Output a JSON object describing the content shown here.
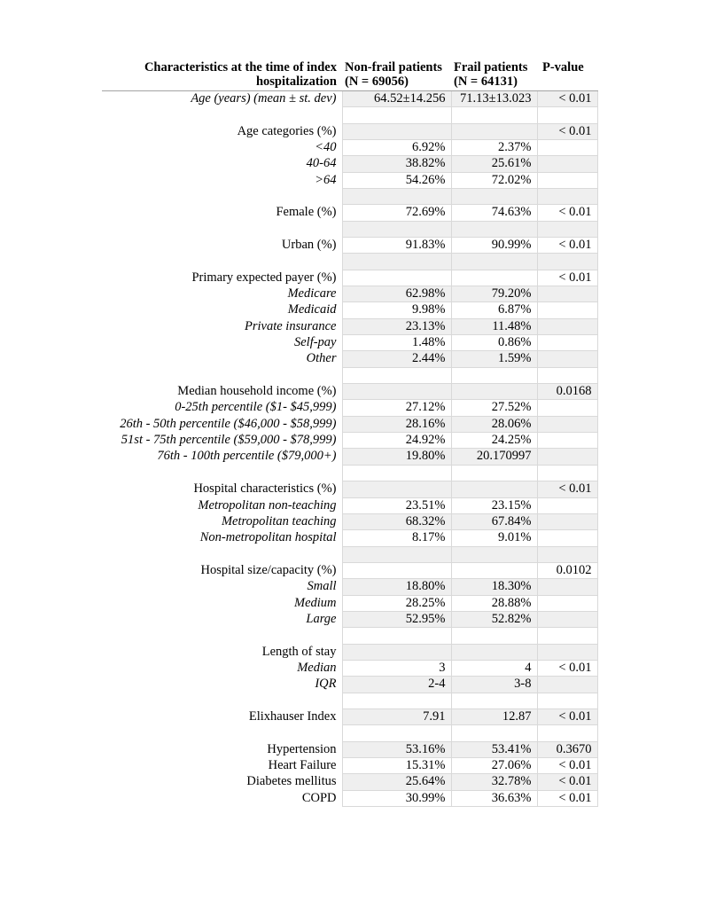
{
  "table": {
    "colors": {
      "band": "#efefef",
      "cell_border": "#d9d9d9",
      "header_rule": "#a3a3a3",
      "text": "#000000",
      "page_background": "#ffffff"
    },
    "columns": [
      {
        "id": "label",
        "header_line1": "Characteristics at the time of index",
        "header_line2": "hospitalization"
      },
      {
        "id": "nonfrail",
        "header_line1": "Non-frail patients",
        "header_line2": "(N = 69056)"
      },
      {
        "id": "frail",
        "header_line1": "Frail patients",
        "header_line2": "(N = 64131)"
      },
      {
        "id": "pvalue",
        "header_line1": "P-value",
        "header_line2": ""
      }
    ],
    "rows": [
      {
        "label": "Age (years) (mean ± st. dev)",
        "italic": true,
        "nonfrail": "64.52±14.256",
        "frail": "71.13±13.023",
        "pvalue": "< 0.01"
      },
      {
        "label": "",
        "italic": false,
        "nonfrail": "",
        "frail": "",
        "pvalue": ""
      },
      {
        "label": "Age categories (%)",
        "italic": false,
        "nonfrail": "",
        "frail": "",
        "pvalue": "< 0.01"
      },
      {
        "label": "<40",
        "italic": true,
        "nonfrail": "6.92%",
        "frail": "2.37%",
        "pvalue": ""
      },
      {
        "label": "40-64",
        "italic": true,
        "nonfrail": "38.82%",
        "frail": "25.61%",
        "pvalue": ""
      },
      {
        "label": ">64",
        "italic": true,
        "nonfrail": "54.26%",
        "frail": "72.02%",
        "pvalue": ""
      },
      {
        "label": "",
        "italic": false,
        "nonfrail": "",
        "frail": "",
        "pvalue": ""
      },
      {
        "label": "Female (%)",
        "italic": false,
        "nonfrail": "72.69%",
        "frail": "74.63%",
        "pvalue": "< 0.01"
      },
      {
        "label": "",
        "italic": false,
        "nonfrail": "",
        "frail": "",
        "pvalue": ""
      },
      {
        "label": "Urban (%)",
        "italic": false,
        "nonfrail": "91.83%",
        "frail": "90.99%",
        "pvalue": "< 0.01"
      },
      {
        "label": "",
        "italic": false,
        "nonfrail": "",
        "frail": "",
        "pvalue": ""
      },
      {
        "label": "Primary expected payer (%)",
        "italic": false,
        "nonfrail": "",
        "frail": "",
        "pvalue": "< 0.01"
      },
      {
        "label": "Medicare",
        "italic": true,
        "nonfrail": "62.98%",
        "frail": "79.20%",
        "pvalue": ""
      },
      {
        "label": "Medicaid",
        "italic": true,
        "nonfrail": "9.98%",
        "frail": "6.87%",
        "pvalue": ""
      },
      {
        "label": "Private insurance",
        "italic": true,
        "nonfrail": "23.13%",
        "frail": "11.48%",
        "pvalue": ""
      },
      {
        "label": "Self-pay",
        "italic": true,
        "nonfrail": "1.48%",
        "frail": "0.86%",
        "pvalue": ""
      },
      {
        "label": "Other",
        "italic": true,
        "nonfrail": "2.44%",
        "frail": "1.59%",
        "pvalue": ""
      },
      {
        "label": "",
        "italic": false,
        "nonfrail": "",
        "frail": "",
        "pvalue": ""
      },
      {
        "label": "Median household income (%)",
        "italic": false,
        "nonfrail": "",
        "frail": "",
        "pvalue": "0.0168"
      },
      {
        "label": "0-25th percentile ($1- $45,999)",
        "italic": true,
        "nonfrail": "27.12%",
        "frail": "27.52%",
        "pvalue": ""
      },
      {
        "label": "26th - 50th percentile ($46,000 - $58,999)",
        "italic": true,
        "nonfrail": "28.16%",
        "frail": "28.06%",
        "pvalue": ""
      },
      {
        "label": "51st - 75th percentile ($59,000 - $78,999)",
        "italic": true,
        "nonfrail": "24.92%",
        "frail": "24.25%",
        "pvalue": ""
      },
      {
        "label": "76th - 100th percentile ($79,000+)",
        "italic": true,
        "nonfrail": "19.80%",
        "frail": "20.170997",
        "pvalue": ""
      },
      {
        "label": "",
        "italic": false,
        "nonfrail": "",
        "frail": "",
        "pvalue": ""
      },
      {
        "label": "Hospital characteristics (%)",
        "italic": false,
        "nonfrail": "",
        "frail": "",
        "pvalue": "< 0.01"
      },
      {
        "label": "Metropolitan non-teaching",
        "italic": true,
        "nonfrail": "23.51%",
        "frail": "23.15%",
        "pvalue": ""
      },
      {
        "label": "Metropolitan teaching",
        "italic": true,
        "nonfrail": "68.32%",
        "frail": "67.84%",
        "pvalue": ""
      },
      {
        "label": "Non-metropolitan hospital",
        "italic": true,
        "nonfrail": "8.17%",
        "frail": "9.01%",
        "pvalue": ""
      },
      {
        "label": "",
        "italic": false,
        "nonfrail": "",
        "frail": "",
        "pvalue": ""
      },
      {
        "label": "Hospital size/capacity (%)",
        "italic": false,
        "nonfrail": "",
        "frail": "",
        "pvalue": "0.0102"
      },
      {
        "label": "Small",
        "italic": true,
        "nonfrail": "18.80%",
        "frail": "18.30%",
        "pvalue": ""
      },
      {
        "label": "Medium",
        "italic": true,
        "nonfrail": "28.25%",
        "frail": "28.88%",
        "pvalue": ""
      },
      {
        "label": "Large",
        "italic": true,
        "nonfrail": "52.95%",
        "frail": "52.82%",
        "pvalue": ""
      },
      {
        "label": "",
        "italic": false,
        "nonfrail": "",
        "frail": "",
        "pvalue": ""
      },
      {
        "label": "Length of stay",
        "italic": false,
        "nonfrail": "",
        "frail": "",
        "pvalue": ""
      },
      {
        "label": "Median",
        "italic": true,
        "nonfrail": "3",
        "frail": "4",
        "pvalue": "< 0.01"
      },
      {
        "label": "IQR",
        "italic": true,
        "nonfrail": "2-4",
        "frail": "3-8",
        "pvalue": ""
      },
      {
        "label": "",
        "italic": false,
        "nonfrail": "",
        "frail": "",
        "pvalue": ""
      },
      {
        "label": "Elixhauser Index",
        "italic": false,
        "nonfrail": "7.91",
        "frail": "12.87",
        "pvalue": "< 0.01"
      },
      {
        "label": "",
        "italic": false,
        "nonfrail": "",
        "frail": "",
        "pvalue": ""
      },
      {
        "label": "Hypertension",
        "italic": false,
        "nonfrail": "53.16%",
        "frail": "53.41%",
        "pvalue": "0.3670"
      },
      {
        "label": "Heart Failure",
        "italic": false,
        "nonfrail": "15.31%",
        "frail": "27.06%",
        "pvalue": "< 0.01"
      },
      {
        "label": "Diabetes mellitus",
        "italic": false,
        "nonfrail": "25.64%",
        "frail": "32.78%",
        "pvalue": "< 0.01"
      },
      {
        "label": "COPD",
        "italic": false,
        "nonfrail": "30.99%",
        "frail": "36.63%",
        "pvalue": "< 0.01"
      }
    ]
  }
}
